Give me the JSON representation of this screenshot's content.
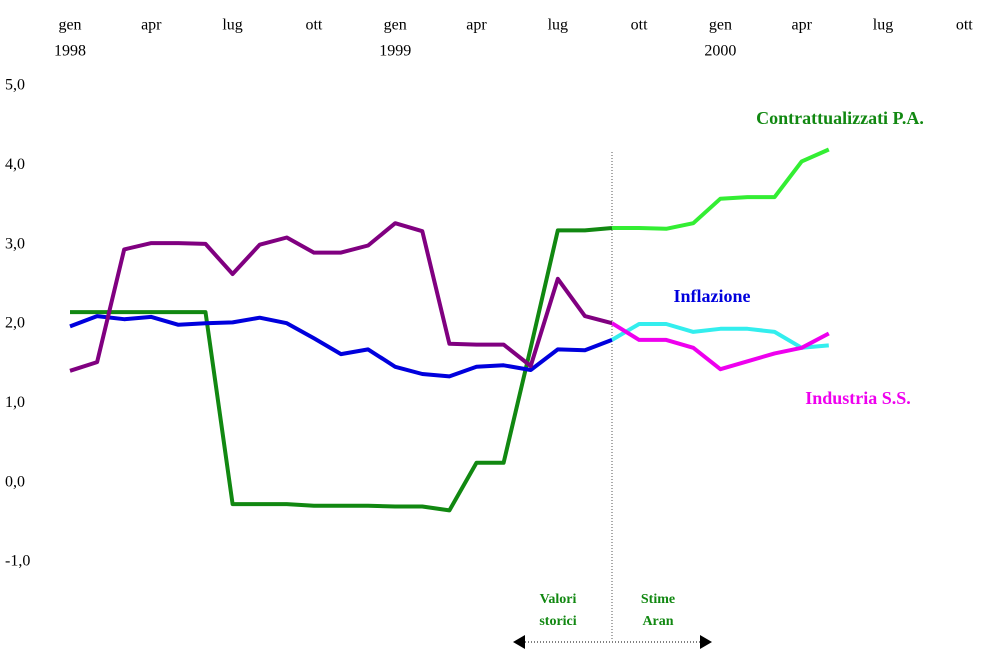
{
  "chart_data": {
    "type": "line",
    "categories": [
      "gen",
      null,
      null,
      "apr",
      null,
      null,
      "lug",
      null,
      null,
      "ott",
      null,
      null,
      "gen",
      null,
      null,
      "apr",
      null,
      null,
      "lug",
      null,
      null,
      "ott",
      null,
      null,
      "gen",
      null,
      null,
      "apr",
      null,
      null,
      "lug",
      null,
      null,
      "ott"
    ],
    "category_years": [
      "1998",
      null,
      null,
      null,
      null,
      null,
      null,
      null,
      null,
      null,
      null,
      null,
      "1999",
      null,
      null,
      null,
      null,
      null,
      null,
      null,
      null,
      null,
      null,
      null,
      "2000",
      null,
      null,
      null,
      null,
      null,
      null,
      null,
      null,
      null
    ],
    "estimate_from": 20,
    "series": [
      {
        "name": "Contrattualizzati P.A.",
        "color": "#118811",
        "estimate_color": "#33ee33",
        "values": [
          2.15,
          2.15,
          2.15,
          2.15,
          2.15,
          2.15,
          -0.27,
          -0.27,
          -0.27,
          -0.29,
          -0.29,
          -0.29,
          -0.3,
          -0.3,
          -0.35,
          0.25,
          0.25,
          1.7,
          3.18,
          3.18,
          3.21,
          3.21,
          3.2,
          3.27,
          3.58,
          3.6,
          3.6,
          4.05,
          4.2,
          null,
          null,
          null,
          null,
          null
        ]
      },
      {
        "name": "Inflazione",
        "color": "#0000dd",
        "estimate_color": "#33eeee",
        "values": [
          1.97,
          2.1,
          2.06,
          2.09,
          1.99,
          2.01,
          2.02,
          2.08,
          2.01,
          1.82,
          1.62,
          1.68,
          1.46,
          1.37,
          1.34,
          1.46,
          1.48,
          1.42,
          1.68,
          1.67,
          1.8,
          2.0,
          2.0,
          1.9,
          1.94,
          1.94,
          1.9,
          1.7,
          1.73,
          null,
          null,
          null,
          null,
          null
        ]
      },
      {
        "name": "Industria S.S.",
        "color": "#800080",
        "estimate_color": "#ee00ee",
        "values": [
          1.41,
          1.52,
          2.94,
          3.02,
          3.02,
          3.01,
          2.63,
          3.0,
          3.09,
          2.9,
          2.9,
          2.99,
          3.27,
          3.17,
          1.75,
          1.74,
          1.74,
          1.47,
          2.57,
          2.1,
          2.01,
          1.8,
          1.8,
          1.7,
          1.43,
          1.53,
          1.63,
          1.7,
          1.88,
          null,
          null,
          null,
          null,
          null
        ]
      }
    ],
    "ylim": [
      -1,
      5
    ],
    "yticks": [
      {
        "value": 5,
        "label": "5,0"
      },
      {
        "value": 4,
        "label": "4,0"
      },
      {
        "value": 3,
        "label": "3,0"
      },
      {
        "value": 2,
        "label": "2,0"
      },
      {
        "value": 1,
        "label": "1,0"
      },
      {
        "value": 0,
        "label": "0,0"
      },
      {
        "value": -1,
        "label": "-1,0"
      }
    ],
    "annotations": [
      [
        "Valori",
        "storici"
      ],
      [
        "Stime",
        "Aran"
      ]
    ]
  }
}
